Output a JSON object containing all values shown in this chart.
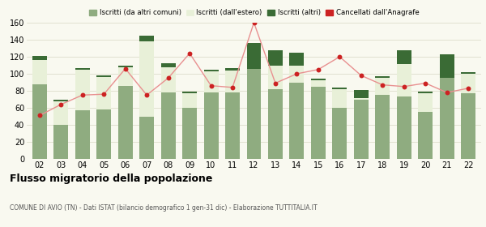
{
  "years": [
    "02",
    "03",
    "04",
    "05",
    "06",
    "07",
    "08",
    "09",
    "10",
    "11",
    "12",
    "13",
    "14",
    "15",
    "16",
    "17",
    "18",
    "19",
    "20",
    "21",
    "22"
  ],
  "iscritti_altri_comuni": [
    88,
    40,
    57,
    58,
    86,
    50,
    78,
    60,
    78,
    78,
    106,
    82,
    90,
    85,
    60,
    70,
    75,
    73,
    55,
    95,
    77
  ],
  "iscritti_estero": [
    28,
    28,
    48,
    38,
    22,
    88,
    30,
    17,
    25,
    26,
    0,
    28,
    20,
    7,
    22,
    1,
    20,
    38,
    22,
    0,
    23
  ],
  "iscritti_altri": [
    5,
    2,
    2,
    2,
    2,
    7,
    4,
    2,
    2,
    3,
    30,
    18,
    15,
    2,
    2,
    10,
    2,
    17,
    2,
    28,
    2
  ],
  "cancellati": [
    51,
    64,
    75,
    76,
    106,
    75,
    95,
    124,
    86,
    84,
    160,
    89,
    100,
    105,
    120,
    98,
    87,
    85,
    89,
    78,
    83
  ],
  "color_altri_comuni": "#8fac80",
  "color_estero": "#e8f0d8",
  "color_altri": "#3a6b35",
  "color_cancellati": "#cc2222",
  "color_cancellati_line": "#e89090",
  "legend_labels": [
    "Iscritti (da altri comuni)",
    "Iscritti (dall'estero)",
    "Iscritti (altri)",
    "Cancellati dall'Anagrafe"
  ],
  "ylabel_max": 160,
  "yticks": [
    0,
    20,
    40,
    60,
    80,
    100,
    120,
    140,
    160
  ],
  "title": "Flusso migratorio della popolazione",
  "subtitle": "COMUNE DI AVIO (TN) - Dati ISTAT (bilancio demografico 1 gen-31 dic) - Elaborazione TUTTITALIA.IT",
  "background_color": "#f9f9f0",
  "grid_color": "#ddddcc"
}
